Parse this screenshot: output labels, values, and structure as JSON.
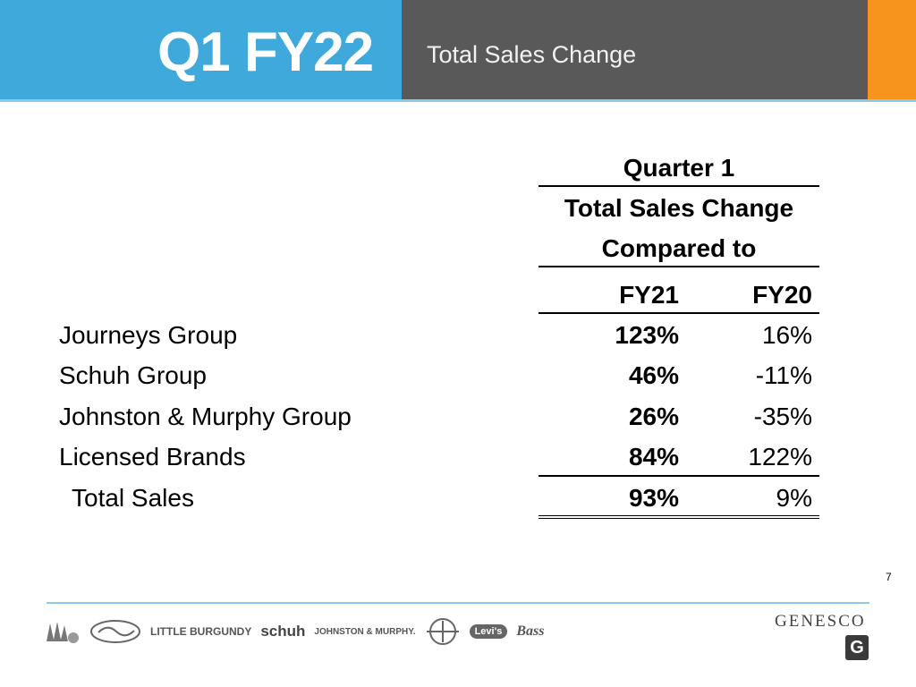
{
  "header": {
    "quarter": "Q1 FY22",
    "subtitle": "Total Sales Change"
  },
  "table": {
    "group_header": "Quarter 1",
    "subheader_line1": "Total Sales Change",
    "subheader_line2": "Compared to",
    "col1": "FY21",
    "col2": "FY20",
    "rows": [
      {
        "label": "Journeys Group",
        "fy21": "123%",
        "fy20": "16%"
      },
      {
        "label": "Schuh Group",
        "fy21": "46%",
        "fy20": "-11%"
      },
      {
        "label": "Johnston & Murphy Group",
        "fy21": "26%",
        "fy20": "-35%"
      },
      {
        "label": "Licensed Brands",
        "fy21": "84%",
        "fy20": "122%"
      }
    ],
    "total": {
      "label": "Total Sales",
      "fy21": "93%",
      "fy20": "9%"
    }
  },
  "footer": {
    "page_number": "7",
    "brand_logos": [
      "LITTLE BURGUNDY",
      "schuh",
      "JOHNSTON & MURPHY.",
      "Levi's",
      "Bass"
    ],
    "company": "GENESCO",
    "company_mark": "G"
  },
  "colors": {
    "header_blue": "#3fa9dc",
    "header_gray": "#595959",
    "header_orange": "#f7941d",
    "accent_line": "#8fcbe8"
  }
}
